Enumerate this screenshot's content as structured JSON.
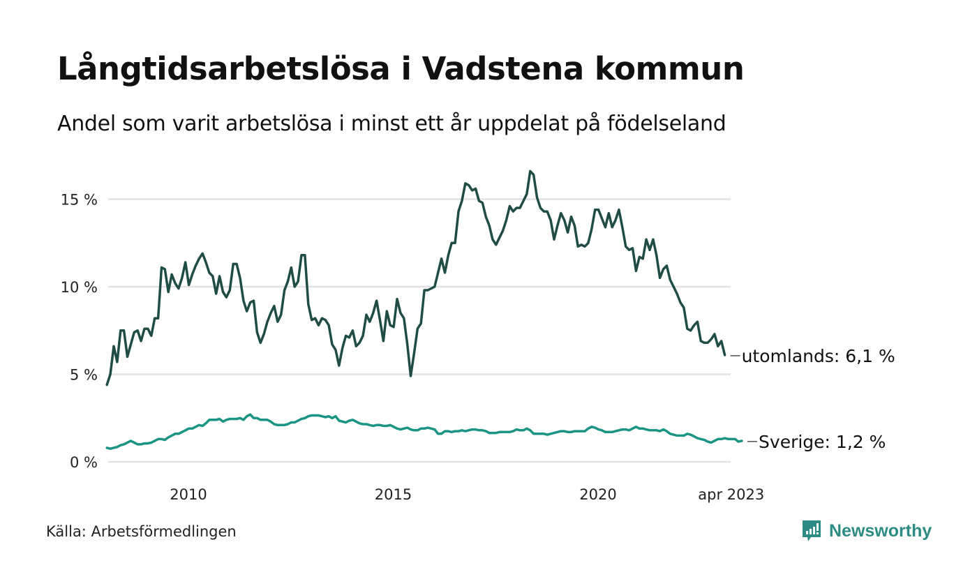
{
  "header": {
    "title": "Långtidsarbetslösa i Vadstena kommun",
    "subtitle": "Andel som varit arbetslösa i minst ett år uppdelat på födelseland"
  },
  "footer": {
    "source": "Källa: Arbetsförmedlingen",
    "brand": "Newsworthy",
    "brand_icon": "bar-chart-speech-bubble-icon"
  },
  "colors": {
    "utomlands": "#1f4d45",
    "sverige": "#1a9484",
    "grid": "#e2e2e6",
    "brand": "#2c8c84"
  },
  "chart_data": {
    "type": "line",
    "title": "Långtidsarbetslösa i Vadstena kommun",
    "subtitle": "Andel som varit arbetslösa i minst ett år uppdelat på födelseland",
    "xlabel": "",
    "ylabel": "",
    "x_start": "2008-01",
    "x_end": "2023-04",
    "x_interval": "month",
    "xticks": [
      {
        "label": "2010",
        "t": 2010.0
      },
      {
        "label": "2015",
        "t": 2015.0
      },
      {
        "label": "2020",
        "t": 2020.0
      },
      {
        "label": "apr 2023",
        "t": 2023.25
      }
    ],
    "yticks": [
      {
        "label": "0 %",
        "v": 0
      },
      {
        "label": "5 %",
        "v": 5
      },
      {
        "label": "10 %",
        "v": 10
      },
      {
        "label": "15 %",
        "v": 15
      }
    ],
    "ylim": [
      0,
      17
    ],
    "grid": true,
    "legend": "end-of-line labels (right)",
    "series": [
      {
        "name": "utomlands",
        "end_label": "utomlands: 6,1 %",
        "values": [
          4.4,
          5.0,
          6.6,
          5.7,
          7.5,
          7.5,
          6.0,
          6.7,
          7.4,
          7.5,
          6.9,
          7.6,
          7.6,
          7.2,
          8.2,
          8.2,
          11.1,
          11.0,
          9.7,
          10.7,
          10.2,
          9.9,
          10.5,
          11.4,
          10.1,
          10.7,
          11.2,
          11.6,
          11.9,
          11.4,
          10.8,
          10.6,
          9.6,
          10.6,
          9.7,
          9.4,
          9.8,
          11.3,
          11.3,
          10.5,
          9.2,
          8.6,
          9.1,
          9.2,
          7.4,
          6.8,
          7.3,
          8.0,
          8.5,
          8.9,
          8.0,
          8.4,
          9.8,
          10.3,
          11.1,
          10.0,
          10.3,
          11.8,
          11.8,
          9.0,
          8.1,
          8.2,
          7.8,
          8.2,
          8.1,
          7.8,
          6.7,
          6.4,
          5.5,
          6.5,
          7.2,
          7.1,
          7.5,
          6.6,
          6.8,
          7.2,
          8.4,
          8.0,
          8.5,
          9.2,
          8.1,
          6.9,
          8.6,
          7.8,
          7.7,
          9.3,
          8.5,
          8.2,
          6.7,
          4.9,
          6.2,
          7.6,
          7.9,
          9.8,
          9.8,
          9.9,
          10.0,
          10.8,
          11.6,
          10.8,
          11.8,
          12.5,
          12.5,
          14.3,
          14.9,
          15.9,
          15.8,
          15.5,
          15.6,
          14.9,
          14.8,
          14.0,
          13.5,
          12.7,
          12.4,
          12.8,
          13.2,
          13.8,
          14.6,
          14.3,
          14.5,
          14.5,
          14.9,
          15.3,
          16.6,
          16.4,
          15.1,
          14.5,
          14.3,
          14.3,
          13.8,
          12.7,
          13.5,
          14.2,
          13.8,
          13.1,
          14.0,
          13.5,
          12.3,
          12.4,
          12.3,
          12.5,
          13.3,
          14.4,
          14.4,
          13.9,
          13.4,
          14.2,
          13.4,
          13.8,
          14.4,
          13.4,
          12.3,
          12.1,
          12.2,
          10.9,
          11.7,
          11.6,
          12.7,
          12.1,
          12.7,
          11.8,
          10.5,
          11.0,
          11.2,
          10.4,
          10.0,
          9.6,
          9.1,
          8.8,
          7.6,
          7.5,
          7.8,
          8.0,
          6.9,
          6.8,
          6.8,
          7.0,
          7.3,
          6.6,
          6.9,
          6.1
        ]
      },
      {
        "name": "Sverige",
        "end_label": "Sverige: 1,2 %",
        "values": [
          0.8,
          0.75,
          0.8,
          0.85,
          0.95,
          1.0,
          1.1,
          1.2,
          1.1,
          1.0,
          1.0,
          1.05,
          1.05,
          1.1,
          1.2,
          1.3,
          1.3,
          1.25,
          1.4,
          1.5,
          1.6,
          1.6,
          1.7,
          1.8,
          1.9,
          1.9,
          2.0,
          2.1,
          2.05,
          2.2,
          2.4,
          2.4,
          2.4,
          2.45,
          2.3,
          2.4,
          2.45,
          2.45,
          2.45,
          2.5,
          2.4,
          2.6,
          2.7,
          2.5,
          2.5,
          2.4,
          2.4,
          2.4,
          2.3,
          2.15,
          2.1,
          2.1,
          2.1,
          2.15,
          2.25,
          2.25,
          2.35,
          2.45,
          2.5,
          2.6,
          2.65,
          2.65,
          2.65,
          2.6,
          2.55,
          2.6,
          2.5,
          2.6,
          2.35,
          2.3,
          2.25,
          2.35,
          2.4,
          2.3,
          2.2,
          2.15,
          2.15,
          2.1,
          2.05,
          2.1,
          2.1,
          2.05,
          2.05,
          2.1,
          2.0,
          1.9,
          1.85,
          1.9,
          1.95,
          1.85,
          1.8,
          1.8,
          1.9,
          1.9,
          1.95,
          1.9,
          1.85,
          1.6,
          1.6,
          1.75,
          1.75,
          1.7,
          1.75,
          1.75,
          1.8,
          1.75,
          1.8,
          1.85,
          1.85,
          1.8,
          1.8,
          1.75,
          1.65,
          1.65,
          1.65,
          1.7,
          1.7,
          1.7,
          1.7,
          1.75,
          1.85,
          1.8,
          1.8,
          1.9,
          1.8,
          1.6,
          1.6,
          1.6,
          1.6,
          1.55,
          1.6,
          1.65,
          1.7,
          1.75,
          1.75,
          1.7,
          1.7,
          1.75,
          1.75,
          1.75,
          1.75,
          1.9,
          2.0,
          1.95,
          1.85,
          1.8,
          1.7,
          1.7,
          1.7,
          1.75,
          1.8,
          1.85,
          1.85,
          1.8,
          1.9,
          2.0,
          1.9,
          1.9,
          1.85,
          1.8,
          1.8,
          1.8,
          1.75,
          1.85,
          1.75,
          1.6,
          1.55,
          1.5,
          1.5,
          1.5,
          1.6,
          1.55,
          1.45,
          1.35,
          1.3,
          1.25,
          1.15,
          1.1,
          1.2,
          1.3,
          1.3,
          1.35,
          1.3,
          1.3,
          1.3,
          1.15,
          1.2
        ]
      }
    ]
  }
}
